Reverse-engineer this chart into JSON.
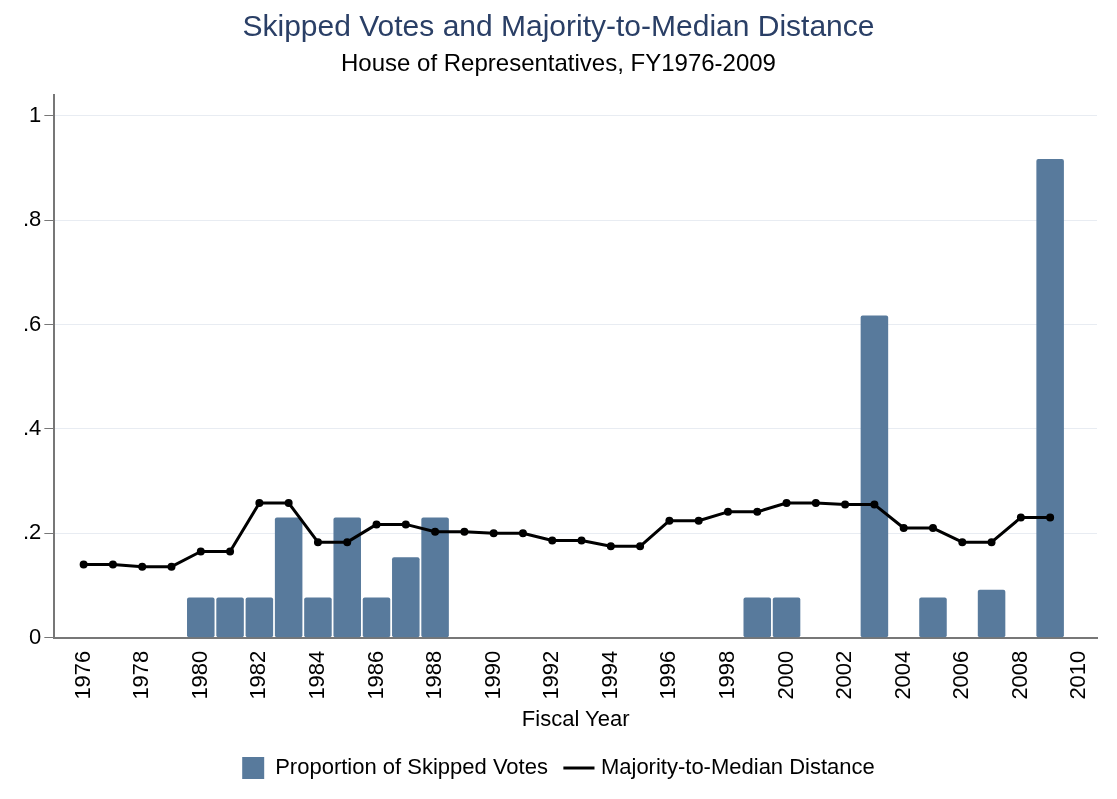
{
  "chart_data": {
    "type": "bar",
    "title": "Skipped Votes and Majority-to-Median Distance",
    "subtitle": "House of Representatives, FY1976-2009",
    "xlabel": "Fiscal Year",
    "x": [
      1976,
      1977,
      1978,
      1979,
      1980,
      1981,
      1982,
      1983,
      1984,
      1985,
      1986,
      1987,
      1988,
      1989,
      1990,
      1991,
      1992,
      1993,
      1994,
      1995,
      1996,
      1997,
      1998,
      1999,
      2000,
      2001,
      2002,
      2003,
      2004,
      2005,
      2006,
      2007,
      2008,
      2009
    ],
    "series": [
      {
        "name": "Proportion of Skipped Votes",
        "color": "#587a9c",
        "values": [
          null,
          null,
          null,
          null,
          0.077,
          0.077,
          0.077,
          0.23,
          0.077,
          0.23,
          0.077,
          0.154,
          0.23,
          null,
          null,
          null,
          null,
          null,
          null,
          null,
          null,
          null,
          null,
          0.077,
          0.077,
          null,
          null,
          0.617,
          null,
          0.077,
          null,
          0.092,
          null,
          0.917
        ]
      },
      {
        "name": "Majority-to-Median Distance",
        "type": "line",
        "color": "#000000",
        "marker": "circle",
        "values": [
          0.14,
          0.14,
          0.136,
          0.136,
          0.165,
          0.165,
          0.258,
          0.258,
          0.183,
          0.183,
          0.217,
          0.217,
          0.203,
          0.203,
          0.2,
          0.2,
          0.186,
          0.186,
          0.175,
          0.175,
          0.224,
          0.224,
          0.241,
          0.241,
          0.258,
          0.258,
          0.255,
          0.255,
          0.21,
          0.21,
          0.183,
          0.183,
          0.23,
          0.23
        ]
      }
    ],
    "xlim": [
      1975,
      2010.6
    ],
    "xticks": [
      1976,
      1978,
      1980,
      1982,
      1984,
      1986,
      1988,
      1990,
      1992,
      1994,
      1996,
      1998,
      2000,
      2002,
      2004,
      2006,
      2008,
      2010
    ],
    "ylim": [
      0,
      1.04
    ],
    "yticks": [
      {
        "value": 0,
        "label": "0"
      },
      {
        "value": 0.2,
        "label": ".2"
      },
      {
        "value": 0.4,
        "label": ".4"
      },
      {
        "value": 0.6,
        "label": ".6"
      },
      {
        "value": 0.8,
        "label": ".8"
      },
      {
        "value": 1,
        "label": "1"
      }
    ],
    "grid": "y",
    "legend": "bottom"
  }
}
